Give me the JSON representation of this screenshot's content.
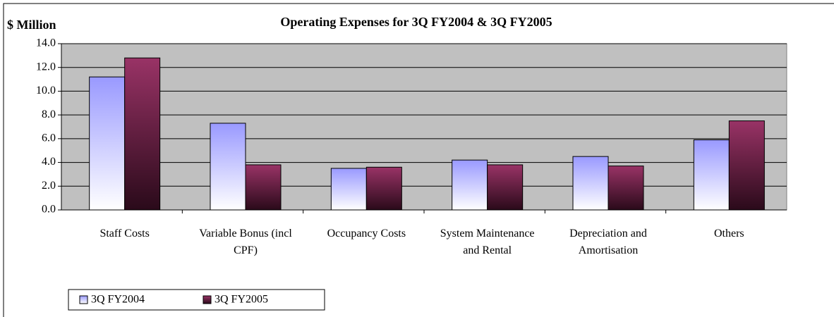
{
  "chart_data": {
    "type": "bar",
    "title": "Operating Expenses for 3Q FY2004 & 3Q FY2005",
    "y_label": "$ Million",
    "categories": [
      "Staff Costs",
      "Variable Bonus (incl CPF)",
      "Occupancy Costs",
      "System Maintenance and Rental",
      "Depreciation and Amortisation",
      "Others"
    ],
    "series": [
      {
        "name": "3Q FY2004",
        "color": "#9999ff",
        "values": [
          11.2,
          7.3,
          3.5,
          4.2,
          4.5,
          5.9
        ]
      },
      {
        "name": "3Q FY2005",
        "color": "#993366",
        "values": [
          12.8,
          3.8,
          3.6,
          3.8,
          3.7,
          7.5
        ]
      }
    ],
    "ylim": [
      0,
      14
    ],
    "yticks": [
      {
        "value": 0,
        "label": "0.0"
      },
      {
        "value": 2,
        "label": "2.0"
      },
      {
        "value": 4,
        "label": "4.0"
      },
      {
        "value": 6,
        "label": "6.0"
      },
      {
        "value": 8,
        "label": "8.0"
      },
      {
        "value": 10,
        "label": "10.0"
      },
      {
        "value": 12,
        "label": "12.0"
      },
      {
        "value": 14,
        "label": "14.0"
      }
    ],
    "grid": true,
    "legend": "bottom-left"
  }
}
